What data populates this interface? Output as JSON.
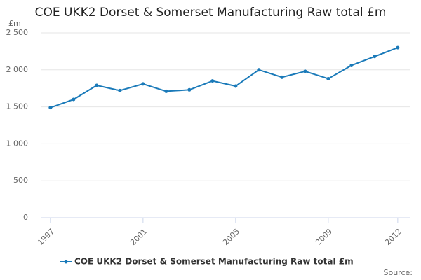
{
  "chart_data": {
    "type": "line",
    "title": "COE UKK2 Dorset & Somerset Manufacturing Raw total £m",
    "y_label": "£m",
    "source": "Source:",
    "x": [
      1997,
      1998,
      1999,
      2000,
      2001,
      2002,
      2003,
      2004,
      2005,
      2006,
      2007,
      2008,
      2009,
      2010,
      2011,
      2012
    ],
    "series": [
      {
        "name": "COE UKK2 Dorset & Somerset Manufacturing Raw total £m",
        "color": "#1a7ab9",
        "values": [
          1490,
          1600,
          1790,
          1720,
          1810,
          1710,
          1730,
          1850,
          1780,
          2000,
          1900,
          1980,
          1880,
          2060,
          2180,
          2300
        ]
      }
    ],
    "xlim": [
      1996.58,
      2012.55
    ],
    "xticks": [
      1997,
      2001,
      2005,
      2009,
      2012
    ],
    "ylim": [
      0,
      2500
    ],
    "yticks": [
      0,
      500,
      {
        "value": 1000,
        "label": "1 000"
      },
      {
        "value": 1500,
        "label": "1 500"
      },
      {
        "value": 2000,
        "label": "2 000"
      },
      {
        "value": 2500,
        "label": "2 500"
      }
    ],
    "grid": true
  }
}
